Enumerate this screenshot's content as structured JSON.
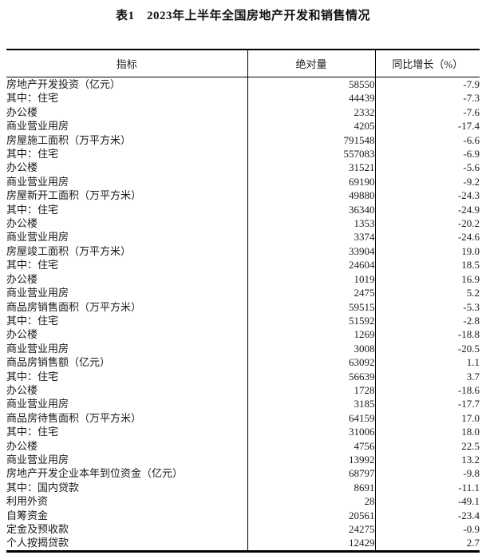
{
  "title": "表1　2023年上半年全国房地产开发和销售情况",
  "table": {
    "headers": [
      "指标",
      "绝对量",
      "同比增长（%）"
    ],
    "rows": [
      {
        "indicator": "房地产开发投资（亿元）",
        "indent": 0,
        "value": "58550",
        "growth": "-7.9"
      },
      {
        "indicator": "其中：住宅",
        "indent": 1,
        "value": "44439",
        "growth": "-7.3"
      },
      {
        "indicator": "办公楼",
        "indent": 2,
        "value": "2332",
        "growth": "-7.6"
      },
      {
        "indicator": "商业营业用房",
        "indent": 2,
        "value": "4205",
        "growth": "-17.4"
      },
      {
        "indicator": "房屋施工面积（万平方米）",
        "indent": 0,
        "value": "791548",
        "growth": "-6.6"
      },
      {
        "indicator": "其中：住宅",
        "indent": 1,
        "value": "557083",
        "growth": "-6.9"
      },
      {
        "indicator": "办公楼",
        "indent": 2,
        "value": "31521",
        "growth": "-5.6"
      },
      {
        "indicator": "商业营业用房",
        "indent": 2,
        "value": "69190",
        "growth": "-9.2"
      },
      {
        "indicator": "房屋新开工面积（万平方米）",
        "indent": 0,
        "value": "49880",
        "growth": "-24.3"
      },
      {
        "indicator": "其中：住宅",
        "indent": 1,
        "value": "36340",
        "growth": "-24.9"
      },
      {
        "indicator": "办公楼",
        "indent": 2,
        "value": "1353",
        "growth": "-20.2"
      },
      {
        "indicator": "商业营业用房",
        "indent": 2,
        "value": "3374",
        "growth": "-24.6"
      },
      {
        "indicator": "房屋竣工面积（万平方米）",
        "indent": 0,
        "value": "33904",
        "growth": "19.0"
      },
      {
        "indicator": "其中：住宅",
        "indent": 1,
        "value": "24604",
        "growth": "18.5"
      },
      {
        "indicator": "办公楼",
        "indent": 2,
        "value": "1019",
        "growth": "16.9"
      },
      {
        "indicator": "商业营业用房",
        "indent": 2,
        "value": "2475",
        "growth": "5.2"
      },
      {
        "indicator": "商品房销售面积（万平方米）",
        "indent": 0,
        "value": "59515",
        "growth": "-5.3"
      },
      {
        "indicator": "其中：住宅",
        "indent": 1,
        "value": "51592",
        "growth": "-2.8"
      },
      {
        "indicator": "办公楼",
        "indent": 2,
        "value": "1269",
        "growth": "-18.8"
      },
      {
        "indicator": "商业营业用房",
        "indent": 2,
        "value": "3008",
        "growth": "-20.5"
      },
      {
        "indicator": "商品房销售额（亿元）",
        "indent": 0,
        "value": "63092",
        "growth": "1.1"
      },
      {
        "indicator": "其中：住宅",
        "indent": 1,
        "value": "56639",
        "growth": "3.7"
      },
      {
        "indicator": "办公楼",
        "indent": 2,
        "value": "1728",
        "growth": "-18.6"
      },
      {
        "indicator": "商业营业用房",
        "indent": 2,
        "value": "3185",
        "growth": "-17.7"
      },
      {
        "indicator": "商品房待售面积（万平方米）",
        "indent": 0,
        "value": "64159",
        "growth": "17.0"
      },
      {
        "indicator": "其中：住宅",
        "indent": 1,
        "value": "31006",
        "growth": "18.0"
      },
      {
        "indicator": "办公楼",
        "indent": 2,
        "value": "4756",
        "growth": "22.5"
      },
      {
        "indicator": "商业营业用房",
        "indent": 2,
        "value": "13992",
        "growth": "13.2"
      },
      {
        "indicator": "房地产开发企业本年到位资金（亿元）",
        "indent": 0,
        "value": "68797",
        "growth": "-9.8"
      },
      {
        "indicator": "其中：国内贷款",
        "indent": 1,
        "value": "8691",
        "growth": "-11.1"
      },
      {
        "indicator": "利用外资",
        "indent": 2,
        "value": "28",
        "growth": "-49.1"
      },
      {
        "indicator": "自筹资金",
        "indent": 2,
        "value": "20561",
        "growth": "-23.4"
      },
      {
        "indicator": "定金及预收款",
        "indent": 2,
        "value": "24275",
        "growth": "-0.9"
      },
      {
        "indicator": "个人按揭贷款",
        "indent": 2,
        "value": "12429",
        "growth": "2.7"
      }
    ]
  },
  "colors": {
    "text": "#1a1a1a",
    "border": "#000000",
    "background": "#ffffff"
  }
}
